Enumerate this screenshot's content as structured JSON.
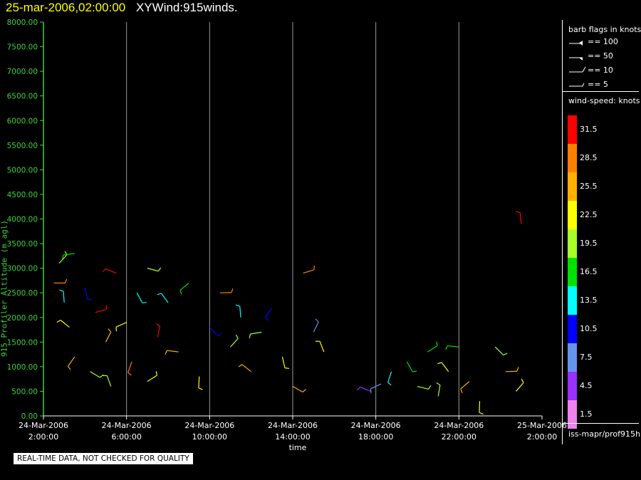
{
  "title": {
    "datetime": "25-mar-2006,02:00:00",
    "name": "XYWind:915winds."
  },
  "legend": {
    "barb_title": "barb flags in knots",
    "barb_items": [
      "== 100",
      "== 50",
      "== 10",
      "== 5"
    ],
    "windspeed_title": "wind-speed: knots",
    "windspeed_levels": [
      {
        "label": "31.5",
        "color": "#ff0000"
      },
      {
        "label": "28.5",
        "color": "#ff7f00"
      },
      {
        "label": "25.5",
        "color": "#ffb000"
      },
      {
        "label": "22.5",
        "color": "#ffff00"
      },
      {
        "label": "19.5",
        "color": "#a8ff28"
      },
      {
        "label": "16.5",
        "color": "#00e000"
      },
      {
        "label": "13.5",
        "color": "#00ffff"
      },
      {
        "label": "10.5",
        "color": "#0000ff"
      },
      {
        "label": "7.5",
        "color": "#6495ed"
      },
      {
        "label": "4.5",
        "color": "#9b30ff"
      },
      {
        "label": "1.5",
        "color": "#ee82ee"
      }
    ],
    "source": "iss-mapr/prof915h"
  },
  "quality_note": "REAL-TIME DATA, NOT CHECKED FOR QUALITY",
  "chart_data": {
    "type": "scatter",
    "title": "XYWind:915winds.",
    "xlabel": "time",
    "ylabel": "915 Profiler Altitude (m agl)",
    "ylim": [
      0,
      8000
    ],
    "xlim": [
      "2006-03-24T02:00:00",
      "2006-03-25T02:00:00"
    ],
    "grid": "vertical lines at each 4-hour tick",
    "x_ticks": [
      {
        "date": "24-Mar-2006",
        "time": "2:00:00"
      },
      {
        "date": "24-Mar-2006",
        "time": "6:00:00"
      },
      {
        "date": "24-Mar-2006",
        "time": "10:00:00"
      },
      {
        "date": "24-Mar-2006",
        "time": "14:00:00"
      },
      {
        "date": "24-Mar-2006",
        "time": "18:00:00"
      },
      {
        "date": "24-Mar-2006",
        "time": "22:00:00"
      },
      {
        "date": "25-Mar-2006",
        "time": "2:00:00"
      }
    ],
    "y_ticks": [
      "0.00",
      "500.00",
      "1000.00",
      "1500.00",
      "2000.00",
      "2500.00",
      "3000.00",
      "3500.00",
      "4000.00",
      "4500.00",
      "5000.00",
      "5500.00",
      "6000.00",
      "6500.00",
      "7000.00",
      "7500.00",
      "8000.00"
    ],
    "series": [
      {
        "marker": "wind barbs, colored by wind speed (knots)",
        "points": [
          {
            "x": "2006-03-24T02:30",
            "y": 2700,
            "ws": 28
          },
          {
            "x": "2006-03-24T02:45",
            "y": 3100,
            "ws": 20
          },
          {
            "x": "2006-03-24T03:00",
            "y": 2300,
            "ws": 14
          },
          {
            "x": "2006-03-24T03:15",
            "y": 1800,
            "ws": 22
          },
          {
            "x": "2006-03-24T03:30",
            "y": 3300,
            "ws": 17
          },
          {
            "x": "2006-03-24T03:30",
            "y": 1200,
            "ws": 24
          },
          {
            "x": "2006-03-24T04:00",
            "y": 2600,
            "ws": 10
          },
          {
            "x": "2006-03-24T04:15",
            "y": 900,
            "ws": 20
          },
          {
            "x": "2006-03-24T04:30",
            "y": 2100,
            "ws": 30
          },
          {
            "x": "2006-03-24T05:00",
            "y": 1500,
            "ws": 26
          },
          {
            "x": "2006-03-24T05:15",
            "y": 600,
            "ws": 18
          },
          {
            "x": "2006-03-24T05:30",
            "y": 2900,
            "ws": 31
          },
          {
            "x": "2006-03-24T06:00",
            "y": 1900,
            "ws": 23
          },
          {
            "x": "2006-03-24T06:15",
            "y": 1100,
            "ws": 27
          },
          {
            "x": "2006-03-24T06:30",
            "y": 2500,
            "ws": 14
          },
          {
            "x": "2006-03-24T07:00",
            "y": 3000,
            "ws": 20
          },
          {
            "x": "2006-03-24T07:00",
            "y": 700,
            "ws": 22
          },
          {
            "x": "2006-03-24T07:30",
            "y": 1600,
            "ws": 30
          },
          {
            "x": "2006-03-24T08:00",
            "y": 2300,
            "ws": 12
          },
          {
            "x": "2006-03-24T08:30",
            "y": 1300,
            "ws": 25
          },
          {
            "x": "2006-03-24T09:00",
            "y": 2700,
            "ws": 17
          },
          {
            "x": "2006-03-24T09:30",
            "y": 800,
            "ws": 21
          },
          {
            "x": "2006-03-24T10:00",
            "y": 1800,
            "ws": 9
          },
          {
            "x": "2006-03-24T10:30",
            "y": 2500,
            "ws": 29
          },
          {
            "x": "2006-03-24T11:00",
            "y": 1400,
            "ws": 19
          },
          {
            "x": "2006-03-24T11:30",
            "y": 2000,
            "ws": 14
          },
          {
            "x": "2006-03-24T12:00",
            "y": 900,
            "ws": 24
          },
          {
            "x": "2006-03-24T12:30",
            "y": 1700,
            "ws": 20
          },
          {
            "x": "2006-03-24T13:00",
            "y": 2200,
            "ws": 11
          },
          {
            "x": "2006-03-24T13:30",
            "y": 1200,
            "ws": 22
          },
          {
            "x": "2006-03-24T14:00",
            "y": 600,
            "ws": 26
          },
          {
            "x": "2006-03-24T14:30",
            "y": 2900,
            "ws": 28
          },
          {
            "x": "2006-03-24T15:00",
            "y": 1700,
            "ws": 6
          },
          {
            "x": "2006-03-24T15:30",
            "y": 1300,
            "ws": 21
          },
          {
            "x": "2006-03-24T17:45",
            "y": 500,
            "ws": 4
          },
          {
            "x": "2006-03-24T18:15",
            "y": 650,
            "ws": 6
          },
          {
            "x": "2006-03-24T18:45",
            "y": 900,
            "ws": 12
          },
          {
            "x": "2006-03-24T19:30",
            "y": 1100,
            "ws": 15
          },
          {
            "x": "2006-03-24T20:00",
            "y": 600,
            "ws": 19
          },
          {
            "x": "2006-03-24T20:30",
            "y": 1300,
            "ws": 17
          },
          {
            "x": "2006-03-24T21:00",
            "y": 400,
            "ws": 20
          },
          {
            "x": "2006-03-24T21:30",
            "y": 900,
            "ws": 22
          },
          {
            "x": "2006-03-24T22:00",
            "y": 1400,
            "ws": 16
          },
          {
            "x": "2006-03-24T22:30",
            "y": 700,
            "ws": 24
          },
          {
            "x": "2006-03-24T23:00",
            "y": 300,
            "ws": 21
          },
          {
            "x": "2006-03-24T23:45",
            "y": 1400,
            "ws": 20
          },
          {
            "x": "2006-03-25T00:15",
            "y": 900,
            "ws": 24
          },
          {
            "x": "2006-03-25T00:45",
            "y": 500,
            "ws": 23
          },
          {
            "x": "2006-03-25T01:00",
            "y": 3900,
            "ws": 31
          }
        ]
      }
    ]
  }
}
